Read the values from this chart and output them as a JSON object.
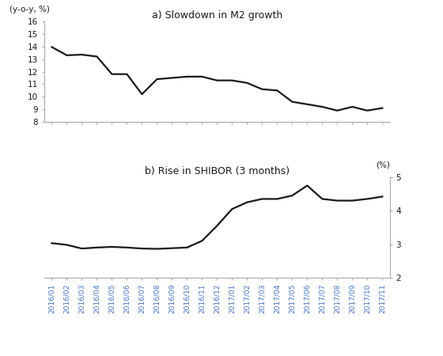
{
  "title_a": "a) Slowdown in M2 growth",
  "title_b": "b) Rise in SHIBOR (3 months)",
  "ylabel_a": "(y-o-y, %)",
  "ylabel_b": "(%)",
  "labels": [
    "2016/01",
    "2016/02",
    "2016/03",
    "2016/04",
    "2016/05",
    "2016/06",
    "2016/07",
    "2016/08",
    "2016/09",
    "2016/10",
    "2016/11",
    "2016/12",
    "2017/01",
    "2017/02",
    "2017/03",
    "2017/04",
    "2017/05",
    "2017/06",
    "2017/07",
    "2017/08",
    "2017/09",
    "2017/10",
    "2017/11"
  ],
  "m2": [
    13.96,
    13.3,
    13.35,
    13.2,
    11.8,
    11.8,
    10.2,
    11.4,
    11.5,
    11.6,
    11.6,
    11.3,
    11.3,
    11.1,
    10.6,
    10.5,
    9.6,
    9.4,
    9.2,
    8.9,
    9.2,
    8.9,
    9.1
  ],
  "shibor": [
    3.03,
    2.98,
    2.87,
    2.9,
    2.92,
    2.9,
    2.87,
    2.86,
    2.88,
    2.9,
    3.1,
    3.55,
    4.05,
    4.25,
    4.35,
    4.35,
    4.45,
    4.75,
    4.35,
    4.3,
    4.3,
    4.35,
    4.42
  ],
  "ylim_a": [
    8,
    16
  ],
  "yticks_a": [
    8,
    9,
    10,
    11,
    12,
    13,
    14,
    15,
    16
  ],
  "ylim_b": [
    2,
    5
  ],
  "yticks_b": [
    2,
    3,
    4,
    5
  ],
  "line_color": "#1a1a1a",
  "line_width": 1.6,
  "label_color": "#4472C4",
  "title_color": "#1a1a1a",
  "spine_color": "#aaaaaa",
  "tick_label_size": 7.5,
  "xlabel_size": 6.5,
  "title_fontsize": 9
}
